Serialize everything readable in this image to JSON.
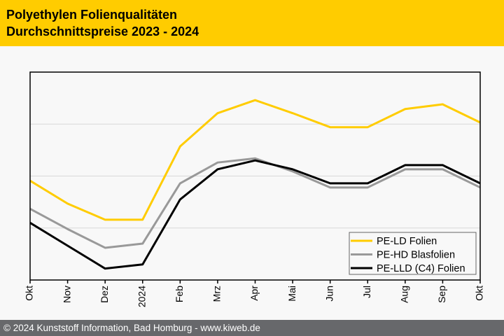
{
  "header": {
    "title_line1": "Polyethylen Folienqualitäten",
    "title_line2": "Durchschnittspreise 2023 - 2024"
  },
  "footer": {
    "text": "© 2024 Kunststoff Information, Bad Homburg - www.kiweb.de"
  },
  "chart_data": {
    "type": "line",
    "title": "Polyethylen Folienqualitäten Durchschnittspreise 2023 - 2024",
    "xlabel": "",
    "ylabel": "",
    "categories": [
      "Okt",
      "Nov",
      "Dez",
      "2024",
      "Feb",
      "Mrz",
      "Apr",
      "Mai",
      "Jun",
      "Jul",
      "Aug",
      "Sep",
      "Okt"
    ],
    "ylim": [
      0,
      4
    ],
    "y_gridlines": [
      1,
      2,
      3
    ],
    "grid": true,
    "legend_position": "bottom-right",
    "series": [
      {
        "name": "PE-LD Folien",
        "color": "#ffcc00",
        "values": [
          1.91,
          1.47,
          1.16,
          1.16,
          2.57,
          3.21,
          3.46,
          3.21,
          2.94,
          2.94,
          3.29,
          3.38,
          3.03
        ]
      },
      {
        "name": "PE-HD Blasfolien",
        "color": "#999999",
        "values": [
          1.37,
          0.98,
          0.62,
          0.7,
          1.86,
          2.26,
          2.34,
          2.09,
          1.78,
          1.78,
          2.13,
          2.13,
          1.78
        ]
      },
      {
        "name": "PE-LLD (C4) Folien",
        "color": "#000000",
        "values": [
          1.1,
          0.66,
          0.22,
          0.3,
          1.55,
          2.13,
          2.3,
          2.13,
          1.86,
          1.86,
          2.21,
          2.21,
          1.86
        ]
      }
    ]
  }
}
